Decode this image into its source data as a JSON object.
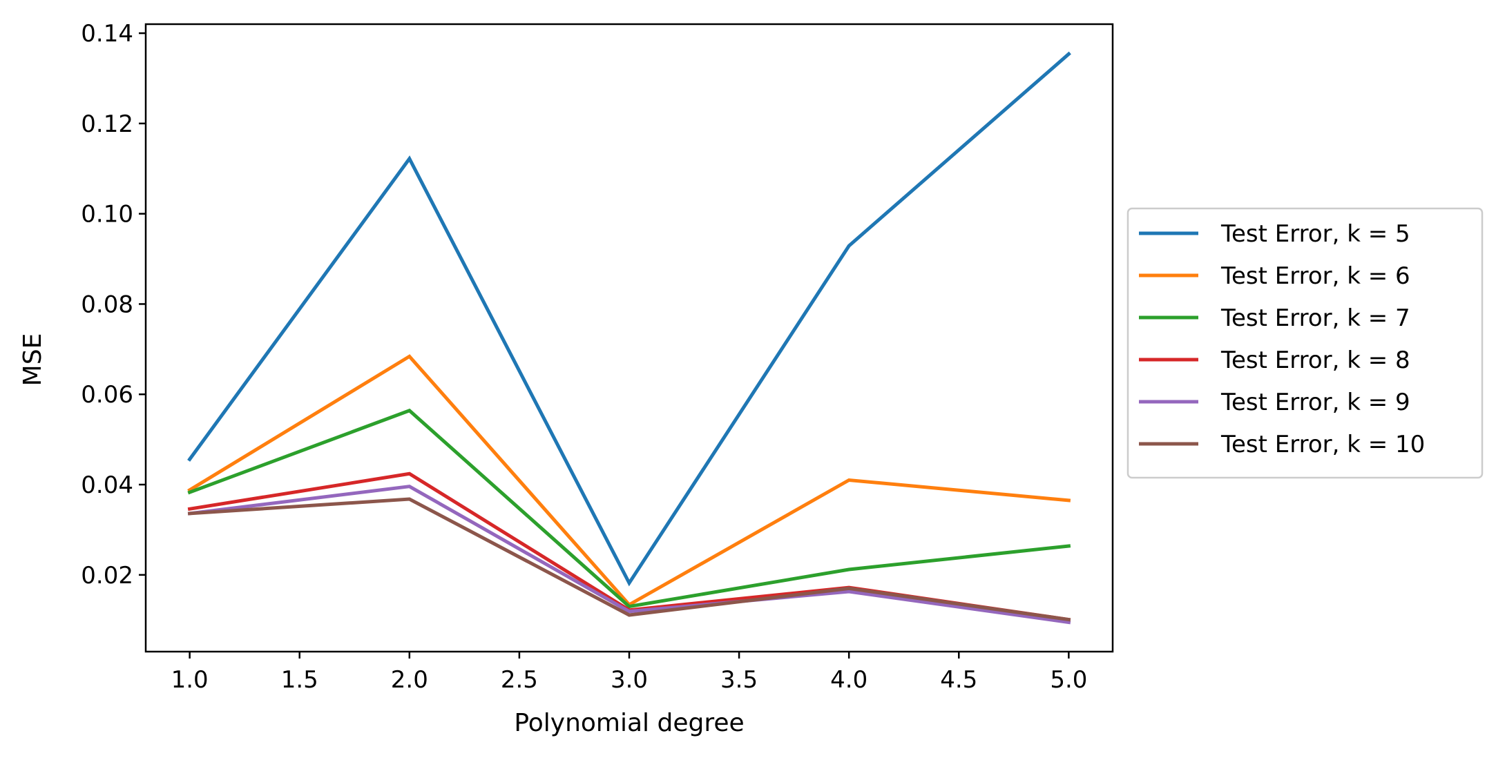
{
  "chart_data": {
    "type": "line",
    "title": "",
    "xlabel": "Polynomial degree",
    "ylabel": "MSE",
    "xlim": [
      0.8,
      5.2
    ],
    "ylim": [
      0.003,
      0.142
    ],
    "xticks": [
      1.0,
      1.5,
      2.0,
      2.5,
      3.0,
      3.5,
      4.0,
      4.5,
      5.0
    ],
    "xtick_labels": [
      "1.0",
      "1.5",
      "2.0",
      "2.5",
      "3.0",
      "3.5",
      "4.0",
      "4.5",
      "5.0"
    ],
    "yticks": [
      0.02,
      0.04,
      0.06,
      0.08,
      0.1,
      0.12,
      0.14
    ],
    "ytick_labels": [
      "0.02",
      "0.04",
      "0.06",
      "0.08",
      "0.10",
      "0.12",
      "0.14"
    ],
    "grid": false,
    "legend_position": "center-right outside",
    "x": [
      1,
      2,
      3,
      4,
      5
    ],
    "series": [
      {
        "name": "Test Error, k = 5",
        "color": "#1f77b4",
        "values": [
          0.0456,
          0.1122,
          0.0182,
          0.0929,
          0.1354
        ]
      },
      {
        "name": "Test Error, k = 6",
        "color": "#ff7f0e",
        "values": [
          0.0388,
          0.0684,
          0.0134,
          0.041,
          0.0365
        ]
      },
      {
        "name": "Test Error, k = 7",
        "color": "#2ca02c",
        "values": [
          0.0383,
          0.0564,
          0.013,
          0.0212,
          0.0264
        ]
      },
      {
        "name": "Test Error, k = 8",
        "color": "#d62728",
        "values": [
          0.0346,
          0.0424,
          0.0122,
          0.0172,
          0.0101
        ]
      },
      {
        "name": "Test Error, k = 9",
        "color": "#9467bd",
        "values": [
          0.0336,
          0.0396,
          0.0119,
          0.0163,
          0.0095
        ]
      },
      {
        "name": "Test Error, k = 10",
        "color": "#8c564b",
        "values": [
          0.0336,
          0.0368,
          0.0111,
          0.017,
          0.0101
        ]
      }
    ]
  }
}
